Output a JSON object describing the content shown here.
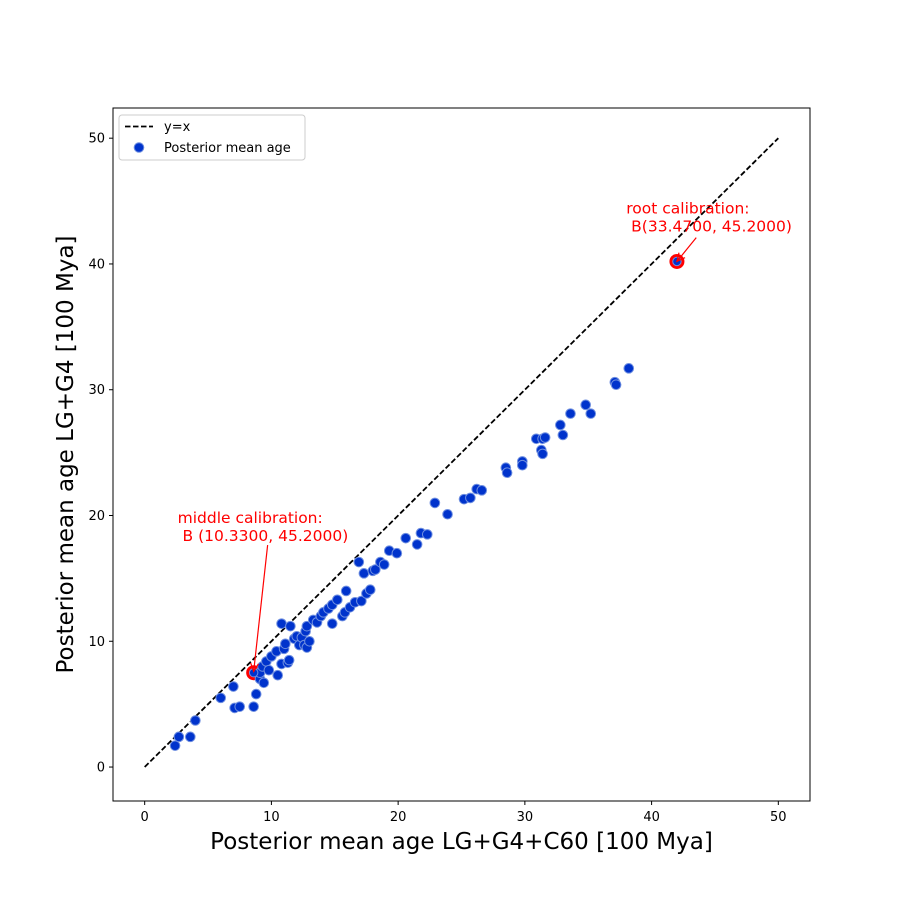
{
  "chart_data": {
    "type": "scatter",
    "xlabel": "Posterior mean age LG+G4+C60 [100 Mya]",
    "ylabel": "Posterior mean age LG+G4 [100 Mya]",
    "xlim": [
      -2.5,
      52.5
    ],
    "ylim": [
      -2.7,
      52.4
    ],
    "xticks": [
      0,
      10,
      20,
      30,
      40,
      50
    ],
    "yticks": [
      0,
      10,
      20,
      30,
      40,
      50
    ],
    "grid": false,
    "legend_position": "upper-left",
    "legend": [
      "y=x",
      "Posterior mean age"
    ],
    "reference_line": {
      "label": "y=x",
      "x": [
        0,
        50
      ],
      "y": [
        0,
        50
      ],
      "style": "dashed",
      "color": "#000000"
    },
    "series": [
      {
        "name": "Posterior mean age",
        "color": "#0033cc",
        "x": [
          2.4,
          2.7,
          3.6,
          4.0,
          6.0,
          7.0,
          7.1,
          7.5,
          8.6,
          8.8,
          9.1,
          9.1,
          9.3,
          9.4,
          9.6,
          9.8,
          10.0,
          10.4,
          10.5,
          10.8,
          10.8,
          11.0,
          11.1,
          11.3,
          11.4,
          11.5,
          11.8,
          12.0,
          12.2,
          12.4,
          12.6,
          12.7,
          12.8,
          12.8,
          13.0,
          13.3,
          13.6,
          13.9,
          14.1,
          14.5,
          14.8,
          14.8,
          15.2,
          15.6,
          15.8,
          15.9,
          16.2,
          16.6,
          16.9,
          17.1,
          17.3,
          17.5,
          17.8,
          18.0,
          18.2,
          18.6,
          18.9,
          19.3,
          19.9,
          20.6,
          21.5,
          21.8,
          22.3,
          22.9,
          23.9,
          25.2,
          25.7,
          26.2,
          26.6,
          28.5,
          28.6,
          29.8,
          29.8,
          30.9,
          31.3,
          31.4,
          31.4,
          31.6,
          32.8,
          33.0,
          33.6,
          34.8,
          35.2,
          37.1,
          37.2,
          38.2
        ],
        "y": [
          1.7,
          2.4,
          2.4,
          3.7,
          5.5,
          6.4,
          4.7,
          4.8,
          4.8,
          5.8,
          7.0,
          7.5,
          8.0,
          6.7,
          8.4,
          7.7,
          8.8,
          9.2,
          7.3,
          8.2,
          11.4,
          9.4,
          9.8,
          8.3,
          8.5,
          11.2,
          10.2,
          10.4,
          9.7,
          10.3,
          9.7,
          10.8,
          9.5,
          11.2,
          10.0,
          11.7,
          11.5,
          12.0,
          12.3,
          12.6,
          11.4,
          12.9,
          13.3,
          12.0,
          12.3,
          14.0,
          12.7,
          13.1,
          16.3,
          13.2,
          15.4,
          13.8,
          14.1,
          15.6,
          15.7,
          16.3,
          16.1,
          17.2,
          17.0,
          18.2,
          17.7,
          18.6,
          18.5,
          21.0,
          20.1,
          21.3,
          21.4,
          22.1,
          22.0,
          23.8,
          23.4,
          24.3,
          24.0,
          26.1,
          25.2,
          24.9,
          26.1,
          26.2,
          27.2,
          26.4,
          28.1,
          28.8,
          28.1,
          30.6,
          30.4,
          31.7
        ]
      }
    ],
    "highlighted_points": [
      {
        "x": 8.6,
        "y": 7.5,
        "color": "#ff0000"
      },
      {
        "x": 42.0,
        "y": 40.2,
        "color": "#ff0000"
      }
    ],
    "annotations": [
      {
        "text_lines": [
          "middle calibration:",
          " B (10.3300, 45.2000)"
        ],
        "text_x": 2.6,
        "text_y": 19.4,
        "arrow_to_x": 8.6,
        "arrow_to_y": 7.6,
        "color": "#ff0000"
      },
      {
        "text_lines": [
          "root calibration:",
          " B(33.4700, 45.2000)"
        ],
        "text_x": 38.0,
        "text_y": 44.0,
        "arrow_to_x": 42.0,
        "arrow_to_y": 40.2,
        "color": "#ff0000"
      }
    ]
  }
}
